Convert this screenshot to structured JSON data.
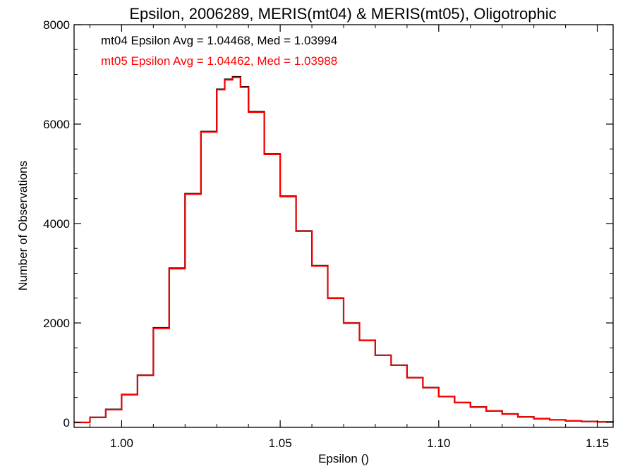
{
  "chart_data": {
    "type": "line",
    "title": "Epsilon, 2006289, MERIS(mt04) & MERIS(mt05), Oligotrophic",
    "xlabel": "Epsilon ()",
    "ylabel": "Number of Observations",
    "xlim": [
      0.985,
      1.155
    ],
    "ylim": [
      -100,
      8000
    ],
    "xticks": [
      1.0,
      1.05,
      1.1,
      1.15
    ],
    "xtick_labels": [
      "1.00",
      "1.05",
      "1.10",
      "1.15"
    ],
    "yticks": [
      0,
      2000,
      4000,
      6000,
      8000
    ],
    "ytick_labels": [
      "0",
      "2000",
      "4000",
      "6000",
      "8000"
    ],
    "grid": false,
    "annotations": [
      {
        "text": "mt04 Epsilon Avg = 1.04468, Med = 1.03994",
        "color": "#000000"
      },
      {
        "text": "mt05 Epsilon Avg = 1.04462, Med = 1.03988",
        "color": "#ff0000"
      }
    ],
    "series": [
      {
        "color": "#000000",
        "x": [
          0.985,
          0.99,
          0.995,
          1.0,
          1.005,
          1.01,
          1.015,
          1.02,
          1.025,
          1.03,
          1.0325,
          1.035,
          1.0375,
          1.04,
          1.045,
          1.05,
          1.055,
          1.06,
          1.065,
          1.07,
          1.075,
          1.08,
          1.085,
          1.09,
          1.095,
          1.1,
          1.105,
          1.11,
          1.115,
          1.12,
          1.125,
          1.13,
          1.135,
          1.14,
          1.145,
          1.15,
          1.155
        ],
        "y": [
          0,
          100,
          260,
          560,
          950,
          1900,
          3100,
          4600,
          5850,
          6700,
          6900,
          6950,
          6750,
          6250,
          5400,
          4550,
          3850,
          3150,
          2500,
          2000,
          1650,
          1350,
          1150,
          900,
          700,
          520,
          400,
          310,
          230,
          170,
          110,
          75,
          50,
          30,
          18,
          10,
          5
        ]
      },
      {
        "color": "#ff0000",
        "x": [
          0.985,
          0.99,
          0.995,
          1.0,
          1.005,
          1.01,
          1.015,
          1.02,
          1.025,
          1.03,
          1.0325,
          1.035,
          1.0375,
          1.04,
          1.045,
          1.05,
          1.055,
          1.06,
          1.065,
          1.07,
          1.075,
          1.08,
          1.085,
          1.09,
          1.095,
          1.1,
          1.105,
          1.11,
          1.115,
          1.12,
          1.125,
          1.13,
          1.135,
          1.14,
          1.145,
          1.15,
          1.155
        ],
        "y": [
          0,
          100,
          255,
          555,
          945,
          1890,
          3090,
          4590,
          5840,
          6690,
          6890,
          6940,
          6740,
          6240,
          5390,
          4540,
          3845,
          3145,
          2495,
          1995,
          1648,
          1348,
          1148,
          898,
          698,
          518,
          398,
          308,
          228,
          168,
          108,
          74,
          49,
          29,
          17,
          9,
          4
        ]
      }
    ]
  }
}
